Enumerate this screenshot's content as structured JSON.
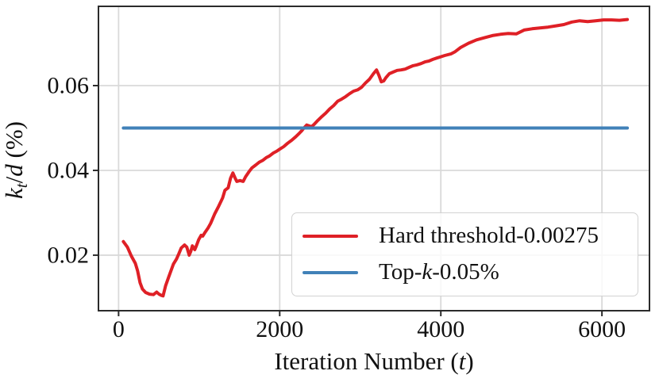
{
  "chart_data": {
    "type": "line",
    "title": "",
    "xlabel_text": "Iteration Number (t)",
    "ylabel_text": "k_t/d (%)",
    "xlabel_parts": [
      {
        "t": "Iteration Number ("
      },
      {
        "t": "t",
        "i": true
      },
      {
        "t": ")"
      }
    ],
    "ylabel_parts": [
      {
        "t": "k",
        "i": true
      },
      {
        "t": "t",
        "i": true,
        "sub": true
      },
      {
        "t": "/"
      },
      {
        "t": "d",
        "i": true
      },
      {
        "t": " (%)"
      }
    ],
    "xlim": [
      -250,
      6590
    ],
    "ylim": [
      0.0069,
      0.0787
    ],
    "xticks": [
      0,
      2000,
      4000,
      6000
    ],
    "xtick_labels": [
      "0",
      "2000",
      "4000",
      "6000"
    ],
    "yticks": [
      0.02,
      0.04,
      0.06
    ],
    "ytick_labels": [
      "0.02",
      "0.04",
      "0.06"
    ],
    "grid": true,
    "legend_position": "lower-right-inside",
    "colors": {
      "grid": "#d9d9d9",
      "frame": "#2b2b2b",
      "text": "#111111",
      "red": "#df2026",
      "blue": "#4181b8",
      "legend_border": "#d2d2d2"
    },
    "series": [
      {
        "name": "Hard threshold-0.00275",
        "label_parts": [
          {
            "t": "Hard threshold-0.00275"
          }
        ],
        "color": "#df2026",
        "points": [
          [
            59,
            0.0232
          ],
          [
            110,
            0.0219
          ],
          [
            158,
            0.0198
          ],
          [
            207,
            0.0181
          ],
          [
            236,
            0.0163
          ],
          [
            266,
            0.0135
          ],
          [
            296,
            0.012
          ],
          [
            335,
            0.0112
          ],
          [
            384,
            0.0108
          ],
          [
            433,
            0.0107
          ],
          [
            472,
            0.0113
          ],
          [
            502,
            0.0108
          ],
          [
            532,
            0.0105
          ],
          [
            552,
            0.0104
          ],
          [
            584,
            0.0128
          ],
          [
            621,
            0.0148
          ],
          [
            650,
            0.0163
          ],
          [
            680,
            0.0179
          ],
          [
            719,
            0.0191
          ],
          [
            749,
            0.0204
          ],
          [
            778,
            0.0217
          ],
          [
            818,
            0.0224
          ],
          [
            847,
            0.0219
          ],
          [
            877,
            0.02
          ],
          [
            896,
            0.0209
          ],
          [
            916,
            0.0222
          ],
          [
            946,
            0.0213
          ],
          [
            965,
            0.0222
          ],
          [
            995,
            0.0237
          ],
          [
            1025,
            0.0247
          ],
          [
            1044,
            0.0245
          ],
          [
            1074,
            0.0254
          ],
          [
            1113,
            0.0265
          ],
          [
            1143,
            0.0275
          ],
          [
            1192,
            0.0297
          ],
          [
            1241,
            0.0315
          ],
          [
            1291,
            0.0335
          ],
          [
            1320,
            0.0353
          ],
          [
            1360,
            0.0359
          ],
          [
            1389,
            0.0381
          ],
          [
            1419,
            0.0394
          ],
          [
            1448,
            0.0381
          ],
          [
            1468,
            0.0374
          ],
          [
            1507,
            0.0376
          ],
          [
            1547,
            0.0374
          ],
          [
            1576,
            0.0385
          ],
          [
            1616,
            0.0396
          ],
          [
            1655,
            0.0406
          ],
          [
            1704,
            0.0413
          ],
          [
            1744,
            0.0419
          ],
          [
            1793,
            0.0424
          ],
          [
            1833,
            0.043
          ],
          [
            1872,
            0.0434
          ],
          [
            1921,
            0.0441
          ],
          [
            1961,
            0.0445
          ],
          [
            2000,
            0.045
          ],
          [
            2049,
            0.0456
          ],
          [
            2099,
            0.0464
          ],
          [
            2148,
            0.0471
          ],
          [
            2197,
            0.0479
          ],
          [
            2246,
            0.0488
          ],
          [
            2276,
            0.0494
          ],
          [
            2305,
            0.0501
          ],
          [
            2335,
            0.0507
          ],
          [
            2365,
            0.0505
          ],
          [
            2394,
            0.0503
          ],
          [
            2424,
            0.0508
          ],
          [
            2473,
            0.0518
          ],
          [
            2522,
            0.0527
          ],
          [
            2571,
            0.0535
          ],
          [
            2621,
            0.0545
          ],
          [
            2670,
            0.0553
          ],
          [
            2719,
            0.0563
          ],
          [
            2768,
            0.0568
          ],
          [
            2818,
            0.0574
          ],
          [
            2867,
            0.0581
          ],
          [
            2917,
            0.0587
          ],
          [
            2966,
            0.059
          ],
          [
            3015,
            0.0596
          ],
          [
            3064,
            0.0606
          ],
          [
            3114,
            0.0615
          ],
          [
            3163,
            0.0628
          ],
          [
            3202,
            0.0637
          ],
          [
            3232,
            0.0624
          ],
          [
            3261,
            0.0609
          ],
          [
            3291,
            0.0611
          ],
          [
            3320,
            0.0619
          ],
          [
            3360,
            0.0628
          ],
          [
            3409,
            0.0632
          ],
          [
            3458,
            0.0636
          ],
          [
            3507,
            0.0637
          ],
          [
            3557,
            0.0639
          ],
          [
            3606,
            0.0643
          ],
          [
            3655,
            0.0647
          ],
          [
            3704,
            0.0649
          ],
          [
            3754,
            0.0652
          ],
          [
            3803,
            0.0656
          ],
          [
            3852,
            0.0658
          ],
          [
            3901,
            0.0662
          ],
          [
            3951,
            0.0665
          ],
          [
            4000,
            0.0668
          ],
          [
            4049,
            0.0671
          ],
          [
            4128,
            0.0675
          ],
          [
            4177,
            0.068
          ],
          [
            4246,
            0.069
          ],
          [
            4345,
            0.07
          ],
          [
            4443,
            0.0708
          ],
          [
            4542,
            0.0713
          ],
          [
            4640,
            0.0718
          ],
          [
            4739,
            0.0721
          ],
          [
            4837,
            0.0723
          ],
          [
            4936,
            0.0722
          ],
          [
            5034,
            0.0731
          ],
          [
            5133,
            0.0734
          ],
          [
            5231,
            0.0736
          ],
          [
            5330,
            0.0738
          ],
          [
            5429,
            0.0741
          ],
          [
            5527,
            0.0744
          ],
          [
            5626,
            0.075
          ],
          [
            5724,
            0.0753
          ],
          [
            5823,
            0.0751
          ],
          [
            5921,
            0.0753
          ],
          [
            6020,
            0.0755
          ],
          [
            6118,
            0.0755
          ],
          [
            6217,
            0.0754
          ],
          [
            6315,
            0.0756
          ]
        ]
      },
      {
        "name": "Top-k-0.05%",
        "label_parts": [
          {
            "t": "Top-"
          },
          {
            "t": "k",
            "i": true
          },
          {
            "t": "-0.05%"
          }
        ],
        "color": "#4181b8",
        "points": [
          [
            59,
            0.05
          ],
          [
            6315,
            0.05
          ]
        ]
      }
    ]
  }
}
